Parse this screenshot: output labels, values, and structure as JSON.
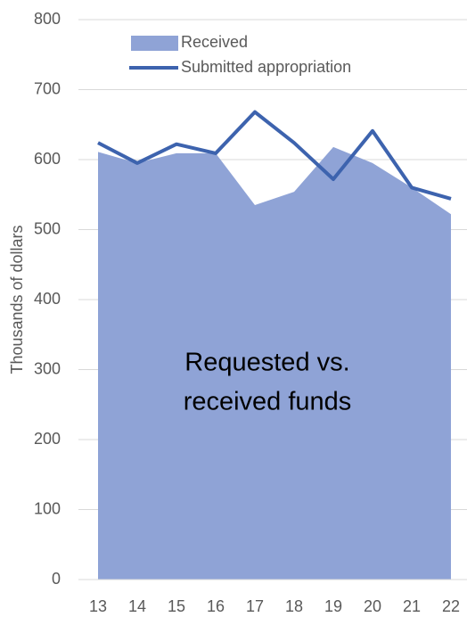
{
  "chart_data": {
    "type": "area-line",
    "y_label": "Thousands of dollars",
    "annotation": [
      "Requested vs.",
      "received funds"
    ],
    "categories": [
      "13",
      "14",
      "15",
      "16",
      "17",
      "18",
      "19",
      "20",
      "21",
      "22"
    ],
    "series": [
      {
        "name": "Received",
        "color": "#8fa3d6",
        "kind": "area",
        "values": [
          611,
          595,
          609,
          609,
          535,
          554,
          618,
          595,
          560,
          522
        ]
      },
      {
        "name": "Submitted appropriation",
        "color": "#3d63ae",
        "kind": "line",
        "values": [
          624,
          595,
          622,
          609,
          668,
          624,
          572,
          641,
          560,
          544
        ]
      }
    ],
    "ylim": [
      0,
      800
    ],
    "yticks": [
      0,
      100,
      200,
      300,
      400,
      500,
      600,
      700,
      800
    ],
    "grid": true
  }
}
